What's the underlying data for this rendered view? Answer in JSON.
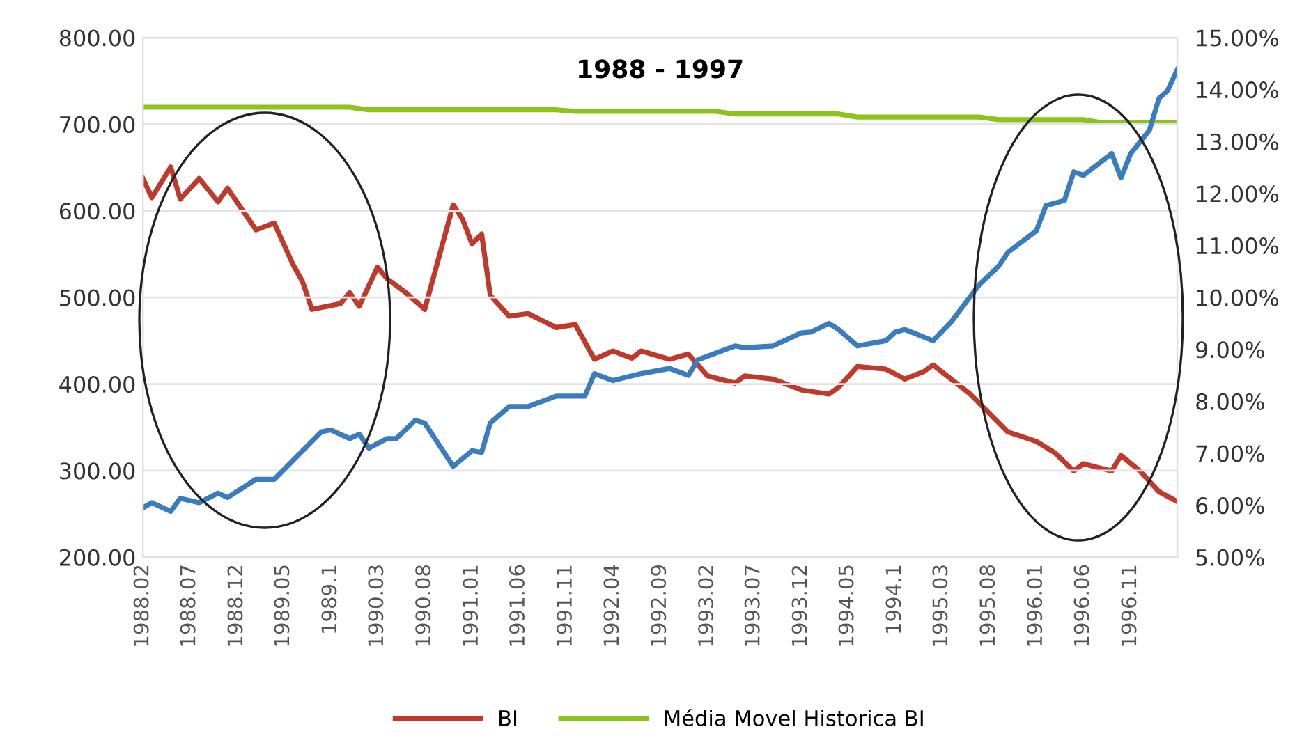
{
  "chart_data": {
    "type": "line",
    "title": "1988 - 1997",
    "xlim": [
      "1988-02",
      "1997-04"
    ],
    "xticks": [
      {
        "value": "1988-02",
        "label": "1988.02"
      },
      {
        "value": "1988-07",
        "label": "1988.07"
      },
      {
        "value": "1988-12",
        "label": "1988.12"
      },
      {
        "value": "1989-05",
        "label": "1989.05"
      },
      {
        "value": "1989-10",
        "label": "1989.1"
      },
      {
        "value": "1990-03",
        "label": "1990.03"
      },
      {
        "value": "1990-08",
        "label": "1990.08"
      },
      {
        "value": "1991-01",
        "label": "1991.01"
      },
      {
        "value": "1991-06",
        "label": "1991.06"
      },
      {
        "value": "1991-11",
        "label": "1991.11"
      },
      {
        "value": "1992-04",
        "label": "1992.04"
      },
      {
        "value": "1992-09",
        "label": "1992.09"
      },
      {
        "value": "1993-02",
        "label": "1993.02"
      },
      {
        "value": "1993-07",
        "label": "1993.07"
      },
      {
        "value": "1993-12",
        "label": "1993.12"
      },
      {
        "value": "1994-05",
        "label": "1994.05"
      },
      {
        "value": "1994-10",
        "label": "1994.1"
      },
      {
        "value": "1995-03",
        "label": "1995.03"
      },
      {
        "value": "1995-08",
        "label": "1995.08"
      },
      {
        "value": "1996-01",
        "label": "1996.01"
      },
      {
        "value": "1996-06",
        "label": "1996.06"
      },
      {
        "value": "1996-11",
        "label": "1996.11"
      }
    ],
    "ylim": [
      200,
      800
    ],
    "yticks": [
      {
        "value": 200,
        "label": "200.00"
      },
      {
        "value": 300,
        "label": "300.00"
      },
      {
        "value": 400,
        "label": "400.00"
      },
      {
        "value": 500,
        "label": "500.00"
      },
      {
        "value": 600,
        "label": "600.00"
      },
      {
        "value": 700,
        "label": "700.00"
      },
      {
        "value": 800,
        "label": "800.00"
      }
    ],
    "y2lim": [
      5,
      15
    ],
    "y2ticks": [
      {
        "value": 5,
        "label": "5.00%"
      },
      {
        "value": 6,
        "label": "6.00%"
      },
      {
        "value": 7,
        "label": "7.00%"
      },
      {
        "value": 8,
        "label": "8.00%"
      },
      {
        "value": 9,
        "label": "9.00%"
      },
      {
        "value": 10,
        "label": "10.00%"
      },
      {
        "value": 11,
        "label": "11.00%"
      },
      {
        "value": 12,
        "label": "12.00%"
      },
      {
        "value": 13,
        "label": "13.00%"
      },
      {
        "value": 14,
        "label": "14.00%"
      },
      {
        "value": 15,
        "label": "15.00%"
      }
    ],
    "grid": "y",
    "legend": "bottom",
    "marker": "none",
    "line_style": "solid",
    "series": [
      {
        "color": "#3a7dbf",
        "x": [
          "1988-02",
          "1988-03",
          "1988-05",
          "1988-06",
          "1988-08",
          "1988-10",
          "1988-11",
          "1989-02",
          "1989-04",
          "1989-09",
          "1989-10",
          "1989-12",
          "1990-01",
          "1990-02",
          "1990-04",
          "1990-05",
          "1990-07",
          "1990-08",
          "1990-11",
          "1991-01",
          "1991-02",
          "1991-03",
          "1991-05",
          "1991-07",
          "1991-10",
          "1992-01",
          "1992-02",
          "1992-04",
          "1992-07",
          "1992-10",
          "1992-12",
          "1993-01",
          "1993-05",
          "1993-06",
          "1993-09",
          "1993-12",
          "1994-01",
          "1994-03",
          "1994-04",
          "1994-06",
          "1994-09",
          "1994-10",
          "1994-11",
          "1995-02",
          "1995-04",
          "1995-07",
          "1995-09",
          "1995-10",
          "1996-01",
          "1996-02",
          "1996-04",
          "1996-05",
          "1996-06",
          "1996-09",
          "1996-10",
          "1996-11",
          "1997-01",
          "1997-02",
          "1997-03",
          "1997-04"
        ],
        "values": [
          257,
          263,
          253,
          268,
          263,
          274,
          269,
          290,
          290,
          345,
          347,
          337,
          342,
          326,
          337,
          337,
          358,
          355,
          305,
          323,
          321,
          355,
          374,
          374,
          386,
          386,
          412,
          404,
          412,
          418,
          410,
          428,
          444,
          442,
          444,
          459,
          460,
          470,
          463,
          444,
          450,
          460,
          463,
          450,
          472,
          515,
          536,
          552,
          577,
          606,
          612,
          645,
          641,
          666,
          638,
          666,
          693,
          730,
          739,
          763
        ]
      },
      {
        "name": "BI",
        "color": "#c0392b",
        "axis": "y2",
        "x": [
          "1988-02",
          "1988-03",
          "1988-05",
          "1988-06",
          "1988-08",
          "1988-10",
          "1988-11",
          "1989-02",
          "1989-04",
          "1989-06",
          "1989-07",
          "1989-08",
          "1989-11",
          "1989-12",
          "1990-01",
          "1990-03",
          "1990-04",
          "1990-06",
          "1990-08",
          "1990-11",
          "1990-12",
          "1991-01",
          "1991-02",
          "1991-03",
          "1991-05",
          "1991-07",
          "1991-10",
          "1991-12",
          "1992-02",
          "1992-04",
          "1992-06",
          "1992-07",
          "1992-10",
          "1992-12",
          "1993-02",
          "1993-05",
          "1993-06",
          "1993-09",
          "1993-12",
          "1994-03",
          "1994-04",
          "1994-06",
          "1994-09",
          "1994-11",
          "1995-01",
          "1995-02",
          "1995-06",
          "1995-10",
          "1996-01",
          "1996-03",
          "1996-05",
          "1996-06",
          "1996-09",
          "1996-10",
          "1996-12",
          "1997-02",
          "1997-04"
        ],
        "values": [
          12.29,
          11.92,
          12.51,
          11.89,
          12.29,
          11.84,
          12.1,
          11.3,
          11.43,
          10.63,
          10.31,
          9.77,
          9.88,
          10.09,
          9.83,
          10.58,
          10.36,
          10.09,
          9.77,
          11.78,
          11.51,
          11.03,
          11.22,
          10.04,
          9.64,
          9.69,
          9.42,
          9.48,
          8.81,
          8.97,
          8.83,
          8.97,
          8.81,
          8.91,
          8.49,
          8.35,
          8.49,
          8.43,
          8.22,
          8.14,
          8.27,
          8.67,
          8.62,
          8.43,
          8.57,
          8.7,
          8.14,
          7.41,
          7.23,
          7.01,
          6.66,
          6.8,
          6.66,
          6.96,
          6.66,
          6.26,
          6.07
        ]
      },
      {
        "name": "Média Movel Historica BI",
        "color": "#8dc21f",
        "axis": "y2",
        "x": [
          "1988-02",
          "1989-12",
          "1990-02",
          "1991-10",
          "1991-12",
          "1993-03",
          "1993-05",
          "1994-04",
          "1994-06",
          "1995-07",
          "1995-09",
          "1996-06",
          "1996-08",
          "1997-04"
        ],
        "values": [
          13.66,
          13.66,
          13.61,
          13.61,
          13.58,
          13.58,
          13.53,
          13.53,
          13.47,
          13.47,
          13.42,
          13.42,
          13.36,
          13.36
        ]
      }
    ]
  }
}
